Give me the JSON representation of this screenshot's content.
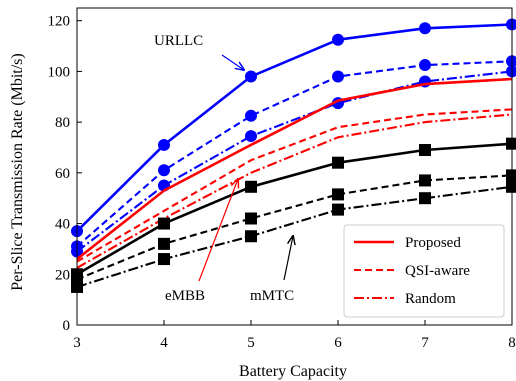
{
  "chart_data": {
    "type": "line",
    "xlabel": "Battery Capacity",
    "ylabel": "Per-Slice Transmission Rate (Mbit/s)",
    "xlim": [
      3,
      8
    ],
    "ylim": [
      0,
      125
    ],
    "x_ticks": [
      3,
      4,
      5,
      6,
      7,
      8
    ],
    "y_ticks": [
      0,
      20,
      40,
      60,
      80,
      100,
      120
    ],
    "x": [
      3,
      4,
      5,
      6,
      7,
      8
    ],
    "grid": false,
    "legend": {
      "placement": "bottom-right",
      "entries": [
        {
          "label": "Proposed",
          "style": "solid"
        },
        {
          "label": "QSI-aware",
          "style": "dashed"
        },
        {
          "label": "Random",
          "style": "dashdot"
        }
      ]
    },
    "annotations": [
      {
        "text": "URLLC"
      },
      {
        "text": "eMBB"
      },
      {
        "text": "mMTC"
      }
    ],
    "colors": {
      "URLLC": "#0000ff",
      "eMBB": "#ff0000",
      "mMTC": "#000000"
    },
    "series": [
      {
        "slice": "URLLC",
        "scheme": "Proposed",
        "color": "#0000ff",
        "style": "solid",
        "marker": "circle",
        "values": [
          37,
          71,
          98,
          112.5,
          117,
          118.5
        ]
      },
      {
        "slice": "URLLC",
        "scheme": "QSI-aware",
        "color": "#0000ff",
        "style": "dashed",
        "marker": "circle",
        "values": [
          31,
          61,
          82.5,
          98,
          102.5,
          104
        ]
      },
      {
        "slice": "URLLC",
        "scheme": "Random",
        "color": "#0000ff",
        "style": "dashdot",
        "marker": "circle",
        "values": [
          29,
          55,
          74.5,
          87.5,
          96,
          100
        ]
      },
      {
        "slice": "eMBB",
        "scheme": "Proposed",
        "color": "#ff0000",
        "style": "solid",
        "marker": "none",
        "values": [
          26,
          53,
          71,
          88.5,
          95,
          97
        ]
      },
      {
        "slice": "eMBB",
        "scheme": "QSI-aware",
        "color": "#ff0000",
        "style": "dashed",
        "marker": "none",
        "values": [
          25,
          45,
          65,
          78,
          83,
          85
        ]
      },
      {
        "slice": "eMBB",
        "scheme": "Random",
        "color": "#ff0000",
        "style": "dashdot",
        "marker": "none",
        "values": [
          22.5,
          42,
          60,
          74,
          80,
          83
        ]
      },
      {
        "slice": "mMTC",
        "scheme": "Proposed",
        "color": "#000000",
        "style": "solid",
        "marker": "square",
        "values": [
          20,
          40,
          54.5,
          64,
          69,
          71.5
        ]
      },
      {
        "slice": "mMTC",
        "scheme": "QSI-aware",
        "color": "#000000",
        "style": "dashed",
        "marker": "square",
        "values": [
          18,
          32,
          42,
          51.5,
          57,
          59
        ]
      },
      {
        "slice": "mMTC",
        "scheme": "Random",
        "color": "#000000",
        "style": "dashdot",
        "marker": "square",
        "values": [
          15,
          26,
          35,
          45.5,
          50,
          54.5
        ]
      }
    ]
  }
}
